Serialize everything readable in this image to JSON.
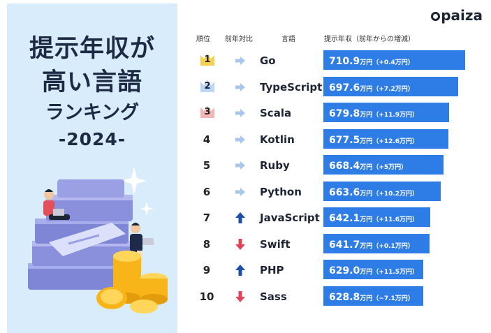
{
  "title": {
    "line1": "提示年収が",
    "line2": "高い言語",
    "line3": "ランキング",
    "line4": "-2024-"
  },
  "brand": "paiza",
  "headers": {
    "rank": "順位",
    "change": "前年対比",
    "language": "言語",
    "salary": "提示年収（前年からの増減）"
  },
  "colors": {
    "bar": "#2e7ce6",
    "up": "#1b4fa8",
    "down": "#e0455b",
    "flat": "#a9c7ee",
    "gold": "#f4d155",
    "silver": "#bcd7f5",
    "bronze": "#f2b7b2"
  },
  "chart_data": {
    "type": "bar",
    "orientation": "horizontal",
    "categories": [
      "Go",
      "TypeScript",
      "Scala",
      "Kotlin",
      "Ruby",
      "Python",
      "JavaScript",
      "Swift",
      "PHP",
      "Sass"
    ],
    "values": [
      710.9,
      697.6,
      679.8,
      677.5,
      668.4,
      663.6,
      642.1,
      641.7,
      629.0,
      628.8
    ],
    "value_labels": [
      "710.9",
      "697.6",
      "679.8",
      "677.5",
      "668.4",
      "663.6",
      "642.1",
      "641.7",
      "629.0",
      "628.8"
    ],
    "unit": "万円",
    "change_labels": [
      "（+0.4万円）",
      "（+7.2万円）",
      "（+11.9万円）",
      "（+12.6万円）",
      "（+5万円）",
      "（+10.2万円）",
      "（+11.6万円）",
      "（+0.1万円）",
      "（+11.5万円）",
      "（−7.1万円）"
    ],
    "ranks": [
      "1",
      "2",
      "3",
      "4",
      "5",
      "6",
      "7",
      "8",
      "9",
      "10"
    ],
    "trend": [
      "flat",
      "flat",
      "flat",
      "flat",
      "flat",
      "flat",
      "up",
      "down",
      "up",
      "down"
    ]
  }
}
